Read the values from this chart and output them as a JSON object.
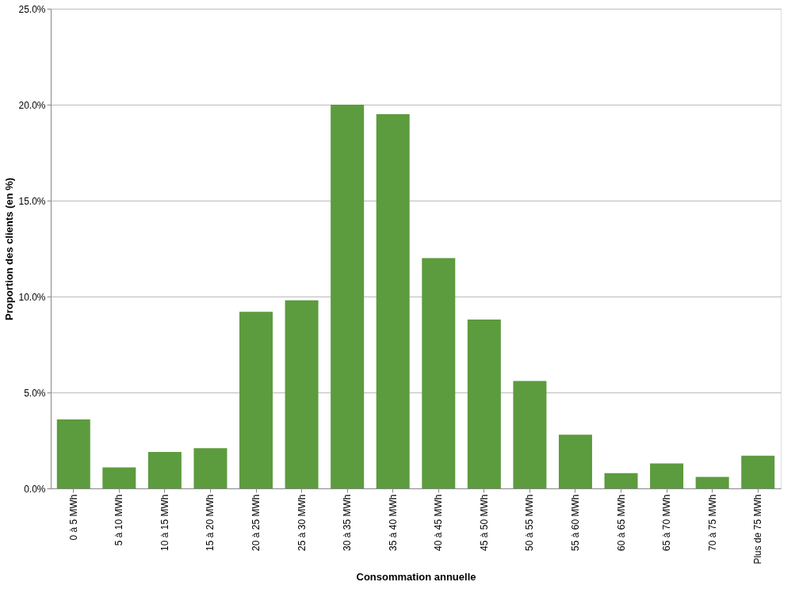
{
  "chart_data": {
    "type": "bar",
    "xlabel": "Consommation annuelle",
    "ylabel": "Proportion des clients (en %)",
    "categories": [
      "0 à 5 MWh",
      "5 à 10 MWh",
      "10 à 15 MWh",
      "15 à 20 MWh",
      "20 à 25 MWh",
      "25 à 30 MWh",
      "30 à 35 MWh",
      "35 à 40 MWh",
      "40 à 45 MWh",
      "45 à 50 MWh",
      "50 à 55 MWh",
      "55 à 60 MWh",
      "60 à 65 MWh",
      "65 à 70 MWh",
      "70 à 75 MWh",
      "Plus de 75 MWh"
    ],
    "values": [
      3.6,
      1.1,
      1.9,
      2.1,
      9.2,
      9.8,
      20.0,
      19.5,
      12.0,
      8.8,
      5.6,
      2.8,
      0.8,
      1.3,
      0.6,
      1.7
    ],
    "color": "#5c9b3e",
    "ylim": [
      0,
      25
    ],
    "yticks": [
      {
        "value": 0,
        "label": "0.0%"
      },
      {
        "value": 5,
        "label": "5.0%"
      },
      {
        "value": 10,
        "label": "10.0%"
      },
      {
        "value": 15,
        "label": "15.0%"
      },
      {
        "value": 20,
        "label": "20.0%"
      },
      {
        "value": 25,
        "label": "25.0%"
      }
    ],
    "grid": "y"
  }
}
